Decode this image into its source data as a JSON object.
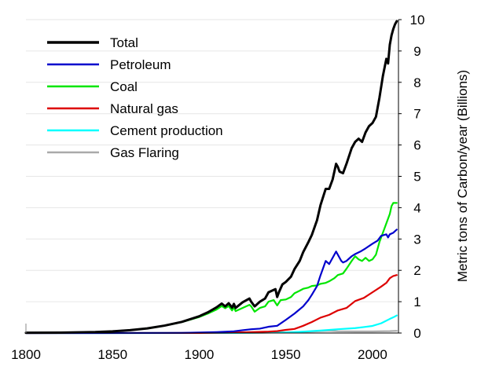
{
  "chart_data": {
    "type": "line",
    "title": "",
    "xlabel": "",
    "ylabel": "Metric tons of Carbon/year (Billions)",
    "xlim": [
      1800,
      2015
    ],
    "ylim": [
      0,
      10
    ],
    "x_ticks": [
      "1800",
      "1850",
      "1900",
      "1950",
      "2000"
    ],
    "y_ticks": [
      "0",
      "1",
      "2",
      "3",
      "4",
      "5",
      "6",
      "7",
      "8",
      "9",
      "10"
    ],
    "y_axis_side": "right",
    "grid": "horizontal",
    "legend_position": "top-left",
    "series": [
      {
        "name": "Total",
        "color": "#000000",
        "points": [
          [
            1800,
            0.008
          ],
          [
            1820,
            0.014
          ],
          [
            1840,
            0.03
          ],
          [
            1850,
            0.054
          ],
          [
            1860,
            0.091
          ],
          [
            1870,
            0.147
          ],
          [
            1880,
            0.236
          ],
          [
            1890,
            0.356
          ],
          [
            1900,
            0.534
          ],
          [
            1905,
            0.66
          ],
          [
            1910,
            0.82
          ],
          [
            1913,
            0.94
          ],
          [
            1915,
            0.85
          ],
          [
            1917,
            0.95
          ],
          [
            1919,
            0.81
          ],
          [
            1920,
            0.93
          ],
          [
            1921,
            0.8
          ],
          [
            1925,
            0.98
          ],
          [
            1929,
            1.1
          ],
          [
            1930,
            1.0
          ],
          [
            1932,
            0.85
          ],
          [
            1935,
            1.0
          ],
          [
            1938,
            1.1
          ],
          [
            1940,
            1.3
          ],
          [
            1942,
            1.35
          ],
          [
            1944,
            1.4
          ],
          [
            1945,
            1.15
          ],
          [
            1946,
            1.3
          ],
          [
            1948,
            1.55
          ],
          [
            1950,
            1.63
          ],
          [
            1953,
            1.8
          ],
          [
            1955,
            2.04
          ],
          [
            1958,
            2.3
          ],
          [
            1960,
            2.58
          ],
          [
            1963,
            2.9
          ],
          [
            1965,
            3.13
          ],
          [
            1968,
            3.6
          ],
          [
            1970,
            4.08
          ],
          [
            1973,
            4.6
          ],
          [
            1974,
            4.6
          ],
          [
            1975,
            4.6
          ],
          [
            1977,
            4.9
          ],
          [
            1979,
            5.4
          ],
          [
            1980,
            5.3
          ],
          [
            1981,
            5.15
          ],
          [
            1983,
            5.1
          ],
          [
            1985,
            5.4
          ],
          [
            1988,
            5.9
          ],
          [
            1990,
            6.1
          ],
          [
            1992,
            6.2
          ],
          [
            1994,
            6.1
          ],
          [
            1996,
            6.4
          ],
          [
            1998,
            6.6
          ],
          [
            2000,
            6.7
          ],
          [
            2002,
            6.9
          ],
          [
            2004,
            7.5
          ],
          [
            2006,
            8.2
          ],
          [
            2008,
            8.75
          ],
          [
            2009,
            8.6
          ],
          [
            2010,
            9.2
          ],
          [
            2011,
            9.5
          ],
          [
            2012,
            9.7
          ],
          [
            2013,
            9.85
          ],
          [
            2014,
            9.95
          ]
        ]
      },
      {
        "name": "Petroleum",
        "color": "#0000cc",
        "points": [
          [
            1800,
            0
          ],
          [
            1870,
            0.001
          ],
          [
            1890,
            0.005
          ],
          [
            1900,
            0.016
          ],
          [
            1910,
            0.03
          ],
          [
            1920,
            0.055
          ],
          [
            1925,
            0.09
          ],
          [
            1930,
            0.12
          ],
          [
            1935,
            0.14
          ],
          [
            1940,
            0.2
          ],
          [
            1945,
            0.23
          ],
          [
            1950,
            0.42
          ],
          [
            1955,
            0.62
          ],
          [
            1960,
            0.85
          ],
          [
            1963,
            1.05
          ],
          [
            1965,
            1.22
          ],
          [
            1968,
            1.5
          ],
          [
            1970,
            1.84
          ],
          [
            1973,
            2.3
          ],
          [
            1974,
            2.25
          ],
          [
            1975,
            2.2
          ],
          [
            1977,
            2.4
          ],
          [
            1979,
            2.6
          ],
          [
            1980,
            2.5
          ],
          [
            1982,
            2.3
          ],
          [
            1983,
            2.25
          ],
          [
            1985,
            2.3
          ],
          [
            1988,
            2.45
          ],
          [
            1990,
            2.52
          ],
          [
            1993,
            2.6
          ],
          [
            1996,
            2.7
          ],
          [
            2000,
            2.85
          ],
          [
            2003,
            2.95
          ],
          [
            2005,
            3.1
          ],
          [
            2008,
            3.15
          ],
          [
            2009,
            3.05
          ],
          [
            2010,
            3.15
          ],
          [
            2012,
            3.2
          ],
          [
            2014,
            3.3
          ]
        ]
      },
      {
        "name": "Coal",
        "color": "#00e600",
        "points": [
          [
            1800,
            0.008
          ],
          [
            1820,
            0.014
          ],
          [
            1840,
            0.03
          ],
          [
            1850,
            0.054
          ],
          [
            1860,
            0.091
          ],
          [
            1870,
            0.146
          ],
          [
            1880,
            0.234
          ],
          [
            1890,
            0.35
          ],
          [
            1900,
            0.51
          ],
          [
            1905,
            0.62
          ],
          [
            1910,
            0.75
          ],
          [
            1913,
            0.86
          ],
          [
            1915,
            0.79
          ],
          [
            1917,
            0.86
          ],
          [
            1919,
            0.72
          ],
          [
            1920,
            0.82
          ],
          [
            1921,
            0.7
          ],
          [
            1925,
            0.8
          ],
          [
            1929,
            0.9
          ],
          [
            1930,
            0.85
          ],
          [
            1932,
            0.68
          ],
          [
            1935,
            0.8
          ],
          [
            1938,
            0.85
          ],
          [
            1940,
            1.0
          ],
          [
            1943,
            1.05
          ],
          [
            1945,
            0.88
          ],
          [
            1947,
            1.05
          ],
          [
            1950,
            1.07
          ],
          [
            1953,
            1.15
          ],
          [
            1955,
            1.27
          ],
          [
            1958,
            1.35
          ],
          [
            1960,
            1.41
          ],
          [
            1963,
            1.45
          ],
          [
            1965,
            1.5
          ],
          [
            1968,
            1.52
          ],
          [
            1970,
            1.57
          ],
          [
            1973,
            1.6
          ],
          [
            1975,
            1.65
          ],
          [
            1978,
            1.75
          ],
          [
            1980,
            1.85
          ],
          [
            1983,
            1.9
          ],
          [
            1985,
            2.05
          ],
          [
            1988,
            2.3
          ],
          [
            1990,
            2.45
          ],
          [
            1992,
            2.35
          ],
          [
            1994,
            2.3
          ],
          [
            1996,
            2.4
          ],
          [
            1998,
            2.3
          ],
          [
            2000,
            2.35
          ],
          [
            2002,
            2.5
          ],
          [
            2004,
            2.9
          ],
          [
            2006,
            3.2
          ],
          [
            2008,
            3.5
          ],
          [
            2010,
            3.8
          ],
          [
            2011,
            4.05
          ],
          [
            2012,
            4.15
          ],
          [
            2014,
            4.15
          ]
        ]
      },
      {
        "name": "Natural gas",
        "color": "#dd0000",
        "points": [
          [
            1800,
            0
          ],
          [
            1880,
            0.002
          ],
          [
            1900,
            0.003
          ],
          [
            1910,
            0.008
          ],
          [
            1920,
            0.015
          ],
          [
            1930,
            0.03
          ],
          [
            1940,
            0.045
          ],
          [
            1945,
            0.06
          ],
          [
            1950,
            0.1
          ],
          [
            1955,
            0.13
          ],
          [
            1960,
            0.23
          ],
          [
            1965,
            0.35
          ],
          [
            1970,
            0.49
          ],
          [
            1975,
            0.58
          ],
          [
            1980,
            0.72
          ],
          [
            1985,
            0.8
          ],
          [
            1990,
            1.02
          ],
          [
            1995,
            1.12
          ],
          [
            2000,
            1.3
          ],
          [
            2005,
            1.48
          ],
          [
            2008,
            1.6
          ],
          [
            2010,
            1.75
          ],
          [
            2012,
            1.82
          ],
          [
            2014,
            1.85
          ]
        ]
      },
      {
        "name": "Cement production",
        "color": "#00ffff",
        "points": [
          [
            1800,
            0
          ],
          [
            1900,
            0.001
          ],
          [
            1920,
            0.004
          ],
          [
            1930,
            0.01
          ],
          [
            1940,
            0.015
          ],
          [
            1950,
            0.018
          ],
          [
            1960,
            0.043
          ],
          [
            1970,
            0.078
          ],
          [
            1980,
            0.12
          ],
          [
            1990,
            0.157
          ],
          [
            1995,
            0.19
          ],
          [
            2000,
            0.226
          ],
          [
            2005,
            0.31
          ],
          [
            2010,
            0.45
          ],
          [
            2012,
            0.5
          ],
          [
            2014,
            0.56
          ]
        ]
      },
      {
        "name": "Gas Flaring",
        "color": "#aaaaaa",
        "points": [
          [
            1800,
            0
          ],
          [
            1900,
            0
          ],
          [
            1930,
            0.005
          ],
          [
            1950,
            0.02
          ],
          [
            1960,
            0.035
          ],
          [
            1970,
            0.06
          ],
          [
            1975,
            0.07
          ],
          [
            1980,
            0.055
          ],
          [
            1990,
            0.05
          ],
          [
            2000,
            0.05
          ],
          [
            2010,
            0.06
          ],
          [
            2014,
            0.07
          ]
        ]
      }
    ]
  }
}
